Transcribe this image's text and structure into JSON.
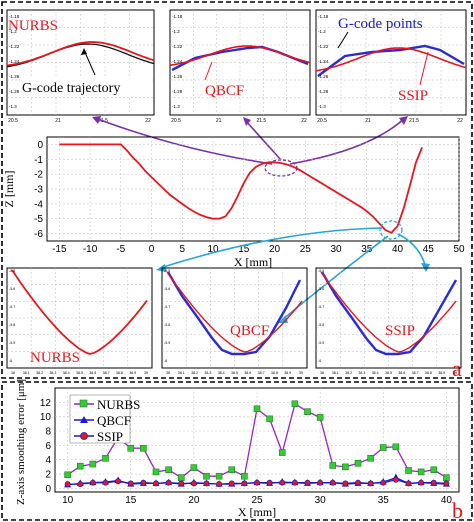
{
  "colors": {
    "nurbs": "#e8161b",
    "gcode": "#111111",
    "qbcf": "#2b2bd6",
    "ssip": "#e8161b",
    "purple": "#7a30a8",
    "cyan": "#22a7d8",
    "error_nurbs": "#a020c8",
    "error_qbcf": "#1a1acc",
    "error_ssip": "#e8161b",
    "marker_nurbs": "#33cc33"
  },
  "panel_labels": {
    "a": "a",
    "b": "b"
  },
  "insets_top": {
    "ylabels": [
      "-1.18",
      "-1.2",
      "-1.22",
      "-1.24",
      "-1.26",
      "-1.28",
      "-1.3"
    ],
    "xlabels": [
      "20.5",
      "21",
      "21.5",
      "22"
    ],
    "labels": {
      "nurbs": "NURBS",
      "gcode_traj": "G-code trajectory",
      "qbcf": "QBCF",
      "gcode_points": "G-code points",
      "ssip": "SSIP"
    }
  },
  "insets_bottom": {
    "xlabels": [
      "38",
      "38.1",
      "38.2",
      "38.3",
      "38.4",
      "38.5",
      "38.6",
      "38.7",
      "38.8",
      "38.9",
      "39"
    ],
    "ylabels": [
      "-5.5",
      "-5.6",
      "-5.7",
      "-5.8",
      "-5.9",
      "-6"
    ],
    "labels": {
      "nurbs": "NURBS",
      "qbcf": "QBCF",
      "ssip": "SSIP"
    }
  },
  "chart_data": [
    {
      "type": "line",
      "xlabel": "X [mm]",
      "ylabel": "Z [mm]",
      "xlim": [
        -17,
        50
      ],
      "ylim": [
        -6.5,
        0.5
      ],
      "xticks": [
        -15,
        -10,
        -5,
        0,
        5,
        10,
        15,
        20,
        25,
        30,
        35,
        40,
        45,
        50
      ],
      "yticks": [
        0,
        -1,
        -2,
        -3,
        -4,
        -5,
        -6
      ],
      "series": [
        {
          "x": [
            -15,
            -14,
            -13,
            -12,
            -11,
            -10,
            -9,
            -8,
            -7,
            -6,
            -5,
            -4,
            -3,
            -2,
            -1,
            0,
            1,
            2,
            3,
            4,
            5,
            6,
            7,
            8,
            9,
            10,
            11,
            12,
            13,
            14,
            15,
            16,
            17,
            18,
            19,
            20,
            21,
            22,
            23,
            24,
            25,
            26,
            27,
            28,
            29,
            30,
            31,
            32,
            33,
            34,
            35,
            36,
            37,
            38,
            39,
            40,
            41,
            42,
            43,
            44
          ],
          "y": [
            0,
            0,
            0,
            0,
            0,
            0,
            0,
            0,
            0,
            0,
            0,
            -0.4,
            -0.9,
            -1.3,
            -1.8,
            -2.2,
            -2.6,
            -3.0,
            -3.4,
            -3.7,
            -4.0,
            -4.3,
            -4.55,
            -4.75,
            -4.9,
            -5.0,
            -5.0,
            -4.85,
            -4.3,
            -3.5,
            -2.6,
            -1.9,
            -1.5,
            -1.3,
            -1.2,
            -1.2,
            -1.25,
            -1.35,
            -1.5,
            -1.7,
            -1.95,
            -2.2,
            -2.45,
            -2.7,
            -2.95,
            -3.2,
            -3.45,
            -3.7,
            -3.95,
            -4.2,
            -4.5,
            -4.85,
            -5.3,
            -5.75,
            -5.95,
            -5.5,
            -4.3,
            -2.8,
            -1.2,
            -0.2
          ]
        }
      ]
    },
    {
      "type": "line",
      "xlabel": "X [mm]",
      "ylabel": "Z-axis smoothing error [μm]",
      "xlim": [
        9,
        41
      ],
      "ylim": [
        -0.5,
        14
      ],
      "xticks": [
        10,
        15,
        20,
        25,
        30,
        35,
        40
      ],
      "yticks": [
        0,
        2,
        4,
        6,
        8,
        10,
        12
      ],
      "legend": "top-left",
      "series": [
        {
          "name": "NURBS",
          "x": [
            10,
            11,
            12,
            13,
            14,
            15,
            16,
            17,
            18,
            19,
            20,
            21,
            22,
            23,
            24,
            25,
            26,
            27,
            28,
            29,
            30,
            31,
            32,
            33,
            34,
            35,
            36,
            37,
            38,
            39,
            40
          ],
          "values": [
            1.9,
            3.1,
            3.4,
            4.2,
            7.1,
            5.6,
            5.6,
            2.3,
            2.6,
            1.5,
            2.9,
            1.7,
            1.7,
            2.6,
            1.7,
            11.1,
            9.7,
            5.0,
            11.8,
            10.7,
            9.9,
            3.2,
            3.0,
            3.5,
            4.2,
            5.7,
            5.8,
            2.5,
            2.3,
            2.6,
            1.5
          ]
        },
        {
          "name": "QBCF",
          "x": [
            10,
            11,
            12,
            13,
            14,
            15,
            16,
            17,
            18,
            19,
            20,
            21,
            22,
            23,
            24,
            25,
            26,
            27,
            28,
            29,
            30,
            31,
            32,
            33,
            34,
            35,
            36,
            37,
            38,
            39,
            40
          ],
          "values": [
            0.5,
            0.7,
            0.8,
            0.9,
            1.1,
            0.6,
            0.7,
            0.7,
            0.8,
            0.6,
            0.8,
            0.7,
            0.6,
            0.6,
            0.7,
            0.8,
            0.7,
            0.9,
            0.8,
            0.7,
            0.8,
            0.8,
            0.6,
            0.7,
            0.7,
            0.9,
            1.5,
            0.7,
            0.8,
            0.7,
            0.6
          ]
        },
        {
          "name": "SSIP",
          "x": [
            10,
            11,
            12,
            13,
            14,
            15,
            16,
            17,
            18,
            19,
            20,
            21,
            22,
            23,
            24,
            25,
            26,
            27,
            28,
            29,
            30,
            31,
            32,
            33,
            34,
            35,
            36,
            37,
            38,
            39,
            40
          ],
          "values": [
            0.6,
            0.6,
            0.8,
            0.8,
            1.0,
            0.7,
            0.8,
            0.7,
            0.8,
            0.7,
            0.7,
            0.7,
            0.6,
            0.7,
            0.7,
            0.8,
            0.8,
            0.8,
            0.8,
            0.8,
            0.8,
            0.8,
            0.7,
            0.8,
            0.7,
            0.8,
            1.2,
            0.7,
            0.8,
            0.8,
            0.7
          ]
        }
      ]
    }
  ]
}
